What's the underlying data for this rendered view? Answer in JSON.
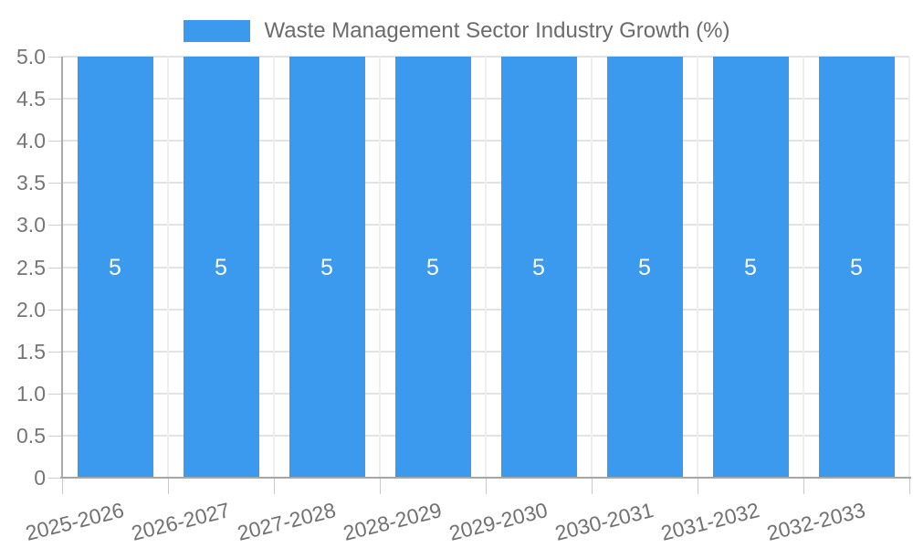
{
  "legend": {
    "label": "Waste Management Sector Industry Growth (%)"
  },
  "chart_data": {
    "type": "bar",
    "title": "Waste Management Sector Industry Growth (%)",
    "xlabel": "",
    "ylabel": "",
    "categories": [
      "2025-2026",
      "2026-2027",
      "2027-2028",
      "2028-2029",
      "2029-2030",
      "2030-2031",
      "2031-2032",
      "2032-2033"
    ],
    "series": [
      {
        "name": "Waste Management Sector Industry Growth (%)",
        "values": [
          5,
          5,
          5,
          5,
          5,
          5,
          5,
          5
        ],
        "bar_labels": [
          "5",
          "5",
          "5",
          "5",
          "5",
          "5",
          "5",
          "5"
        ]
      }
    ],
    "ylim": [
      0,
      5
    ],
    "ytick_labels": [
      "0",
      "0.5",
      "1.0",
      "1.5",
      "2.0",
      "2.5",
      "3.0",
      "3.5",
      "4.0",
      "4.5",
      "5.0"
    ],
    "grid": true,
    "legend_position": "top-center",
    "colors": {
      "bar": "#3B99EE",
      "grid_horizontal": "#e3e3e3",
      "grid_vertical": "#efefef",
      "axis": "#a6a6a6",
      "tick_text": "#757575",
      "legend_text": "#6b6b6b",
      "bar_label_text": "#ffffff",
      "background": "#ffffff"
    }
  }
}
